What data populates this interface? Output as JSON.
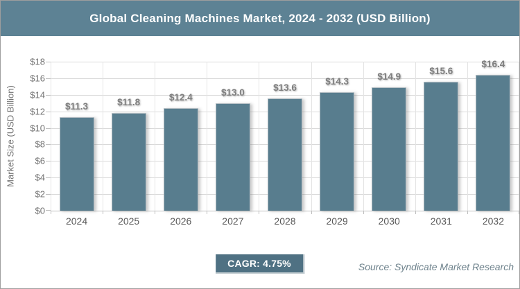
{
  "header": {
    "title": "Global Cleaning Machines Market, 2024 - 2032 (USD Billion)"
  },
  "chart_data": {
    "type": "bar",
    "title": "Global Cleaning Machines Market, 2024 - 2032 (USD Billion)",
    "categories": [
      "2024",
      "2025",
      "2026",
      "2027",
      "2028",
      "2029",
      "2030",
      "2031",
      "2032"
    ],
    "values": [
      11.3,
      11.8,
      12.4,
      13.0,
      13.6,
      14.3,
      14.9,
      15.6,
      16.4
    ],
    "value_labels": [
      "$11.3",
      "$11.8",
      "$12.4",
      "$13.0",
      "$13.6",
      "$14.3",
      "$14.9",
      "$15.6",
      "$16.4"
    ],
    "xlabel": "",
    "ylabel": "Market Size (USD Billion)",
    "ylim": [
      0,
      18
    ],
    "ytick_step": 2,
    "ytick_labels": [
      "$0",
      "$2",
      "$4",
      "$6",
      "$8",
      "$10",
      "$12",
      "$14",
      "$16",
      "$18"
    ],
    "grid": true,
    "legend": false,
    "bar_color": "#587d8e"
  },
  "footer": {
    "cagr_label": "CAGR: 4.75%",
    "source": "Source: Syndicate Market Research"
  },
  "colors": {
    "title_bar_bg": "#5d8294",
    "badge_bg": "#4f7183",
    "bar_fill": "#587d8e",
    "gridline": "#d9d9d9",
    "axis_text": "#737373",
    "value_label_text": "#7f7f7f"
  }
}
